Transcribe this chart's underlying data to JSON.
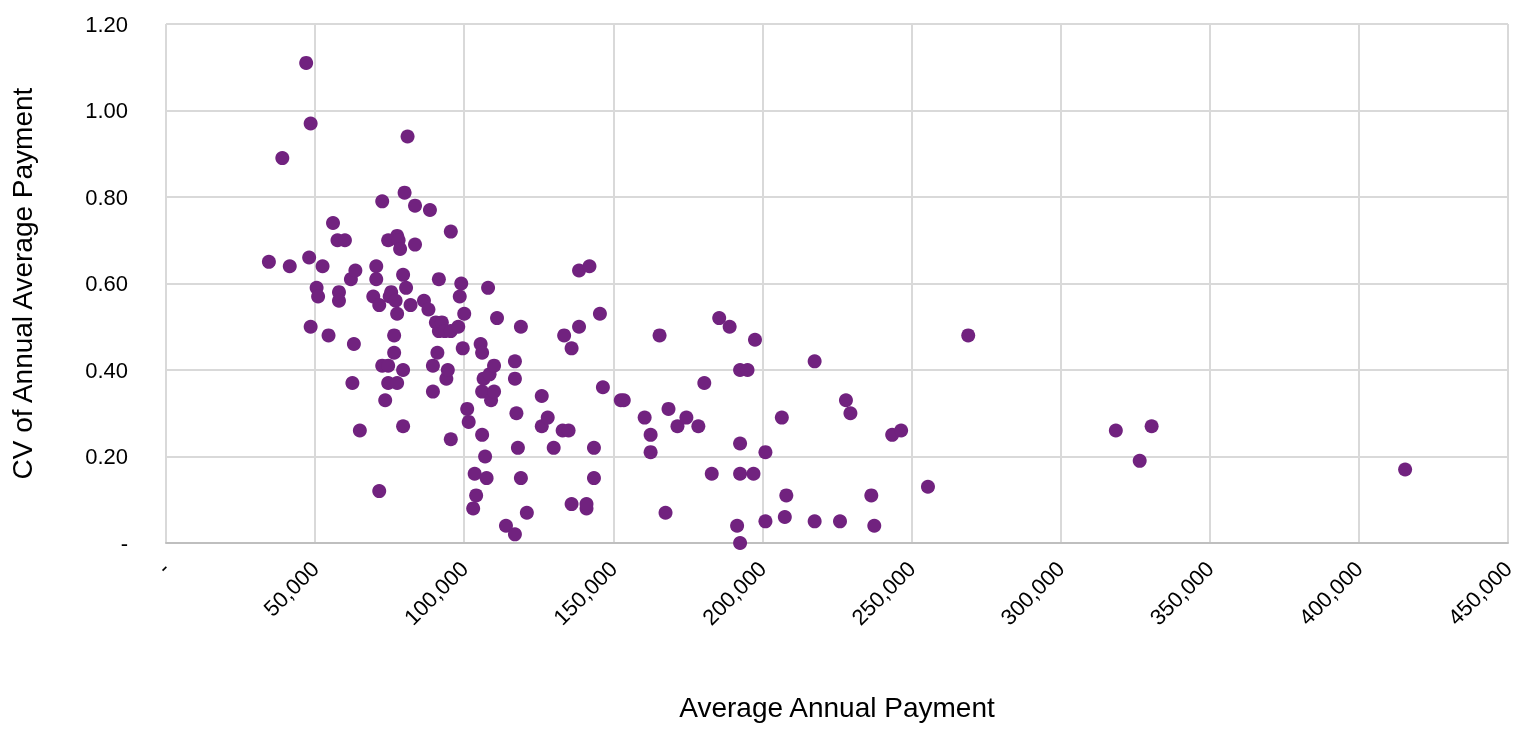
{
  "chart_data": {
    "type": "scatter",
    "xlabel": "Average Annual Payment",
    "ylabel": "CV of Annual Average Payment",
    "xlim": [
      0,
      450000
    ],
    "xticks": [
      {
        "value": 0,
        "label": "-"
      },
      {
        "value": 50000,
        "label": "50,000"
      },
      {
        "value": 100000,
        "label": "100,000"
      },
      {
        "value": 150000,
        "label": "150,000"
      },
      {
        "value": 200000,
        "label": "200,000"
      },
      {
        "value": 250000,
        "label": "250,000"
      },
      {
        "value": 300000,
        "label": "300,000"
      },
      {
        "value": 350000,
        "label": "350,000"
      },
      {
        "value": 400000,
        "label": "400,000"
      },
      {
        "value": 450000,
        "label": "450,000"
      }
    ],
    "ylim": [
      0,
      1.2
    ],
    "yticks": [
      {
        "value": 0,
        "label": "-"
      },
      {
        "value": 0.2,
        "label": "0.20"
      },
      {
        "value": 0.4,
        "label": "0.40"
      },
      {
        "value": 0.6,
        "label": "0.60"
      },
      {
        "value": 0.8,
        "label": "0.80"
      },
      {
        "value": 1.0,
        "label": "1.00"
      },
      {
        "value": 1.2,
        "label": "1.20"
      }
    ],
    "grid": true,
    "marker": "circle",
    "color": "#71227f",
    "x": [
      47000,
      48500,
      39000,
      34500,
      41500,
      48000,
      52500,
      50500,
      51000,
      48500,
      54500,
      56000,
      57500,
      60000,
      58000,
      58000,
      62000,
      63500,
      63000,
      62500,
      65000,
      70500,
      70500,
      69500,
      71500,
      72500,
      72500,
      71500,
      74500,
      73500,
      74500,
      74500,
      75000,
      75500,
      76500,
      76500,
      77000,
      77500,
      77500,
      78000,
      77500,
      78500,
      79500,
      79500,
      79500,
      80000,
      80500,
      81000,
      82000,
      83500,
      83500,
      86500,
      88000,
      88500,
      89500,
      89500,
      91500,
      90500,
      91000,
      91500,
      92500,
      93500,
      94000,
      94500,
      95500,
      95500,
      95500,
      98000,
      99000,
      98500,
      99500,
      100000,
      101000,
      101500,
      103000,
      103500,
      104000,
      105500,
      106000,
      106000,
      106000,
      106500,
      107000,
      107500,
      108000,
      108500,
      109000,
      110000,
      110000,
      111000,
      114000,
      117000,
      117000,
      117000,
      117500,
      118000,
      119000,
      119000,
      121000,
      126000,
      126000,
      128000,
      130000,
      133000,
      133500,
      135000,
      136000,
      136000,
      138500,
      138500,
      141000,
      141000,
      142000,
      143500,
      143500,
      145500,
      146500,
      152500,
      153500,
      160500,
      162500,
      162500,
      165500,
      167500,
      168500,
      171500,
      174500,
      178500,
      180500,
      183000,
      185500,
      189000,
      192500,
      192500,
      192500,
      195000,
      191500,
      192500,
      197500,
      197000,
      201000,
      201000,
      206500,
      208000,
      207500,
      217500,
      217500,
      228000,
      229500,
      226000,
      236500,
      237500,
      243500,
      246500,
      255500,
      269000,
      318500,
      326500,
      330500,
      415500
    ],
    "values": [
      1.11,
      0.97,
      0.89,
      0.65,
      0.64,
      0.66,
      0.64,
      0.59,
      0.57,
      0.5,
      0.48,
      0.74,
      0.7,
      0.7,
      0.58,
      0.56,
      0.61,
      0.63,
      0.46,
      0.37,
      0.26,
      0.64,
      0.61,
      0.57,
      0.55,
      0.79,
      0.41,
      0.12,
      0.41,
      0.33,
      0.37,
      0.7,
      0.57,
      0.58,
      0.48,
      0.44,
      0.56,
      0.37,
      0.71,
      0.7,
      0.53,
      0.68,
      0.62,
      0.27,
      0.4,
      0.81,
      0.59,
      0.94,
      0.55,
      0.78,
      0.69,
      0.56,
      0.54,
      0.77,
      0.41,
      0.35,
      0.61,
      0.51,
      0.44,
      0.49,
      0.51,
      0.49,
      0.38,
      0.4,
      0.72,
      0.49,
      0.24,
      0.5,
      0.6,
      0.57,
      0.45,
      0.53,
      0.31,
      0.28,
      0.08,
      0.16,
      0.11,
      0.46,
      0.44,
      0.25,
      0.35,
      0.38,
      0.2,
      0.15,
      0.59,
      0.39,
      0.33,
      0.41,
      0.35,
      0.52,
      0.04,
      0.42,
      0.02,
      0.38,
      0.3,
      0.22,
      0.5,
      0.15,
      0.07,
      0.34,
      0.27,
      0.29,
      0.22,
      0.26,
      0.48,
      0.26,
      0.45,
      0.09,
      0.63,
      0.5,
      0.08,
      0.09,
      0.64,
      0.22,
      0.15,
      0.53,
      0.36,
      0.33,
      0.33,
      0.29,
      0.25,
      0.21,
      0.48,
      0.07,
      0.31,
      0.27,
      0.29,
      0.27,
      0.37,
      0.16,
      0.52,
      0.5,
      0.23,
      0.16,
      0.4,
      0.4,
      0.04,
      0.0,
      0.47,
      0.16,
      0.21,
      0.05,
      0.29,
      0.11,
      0.06,
      0.42,
      0.05,
      0.33,
      0.3,
      0.05,
      0.11,
      0.04,
      0.25,
      0.26,
      0.13,
      0.48,
      0.26,
      0.19,
      0.27,
      0.17
    ]
  }
}
